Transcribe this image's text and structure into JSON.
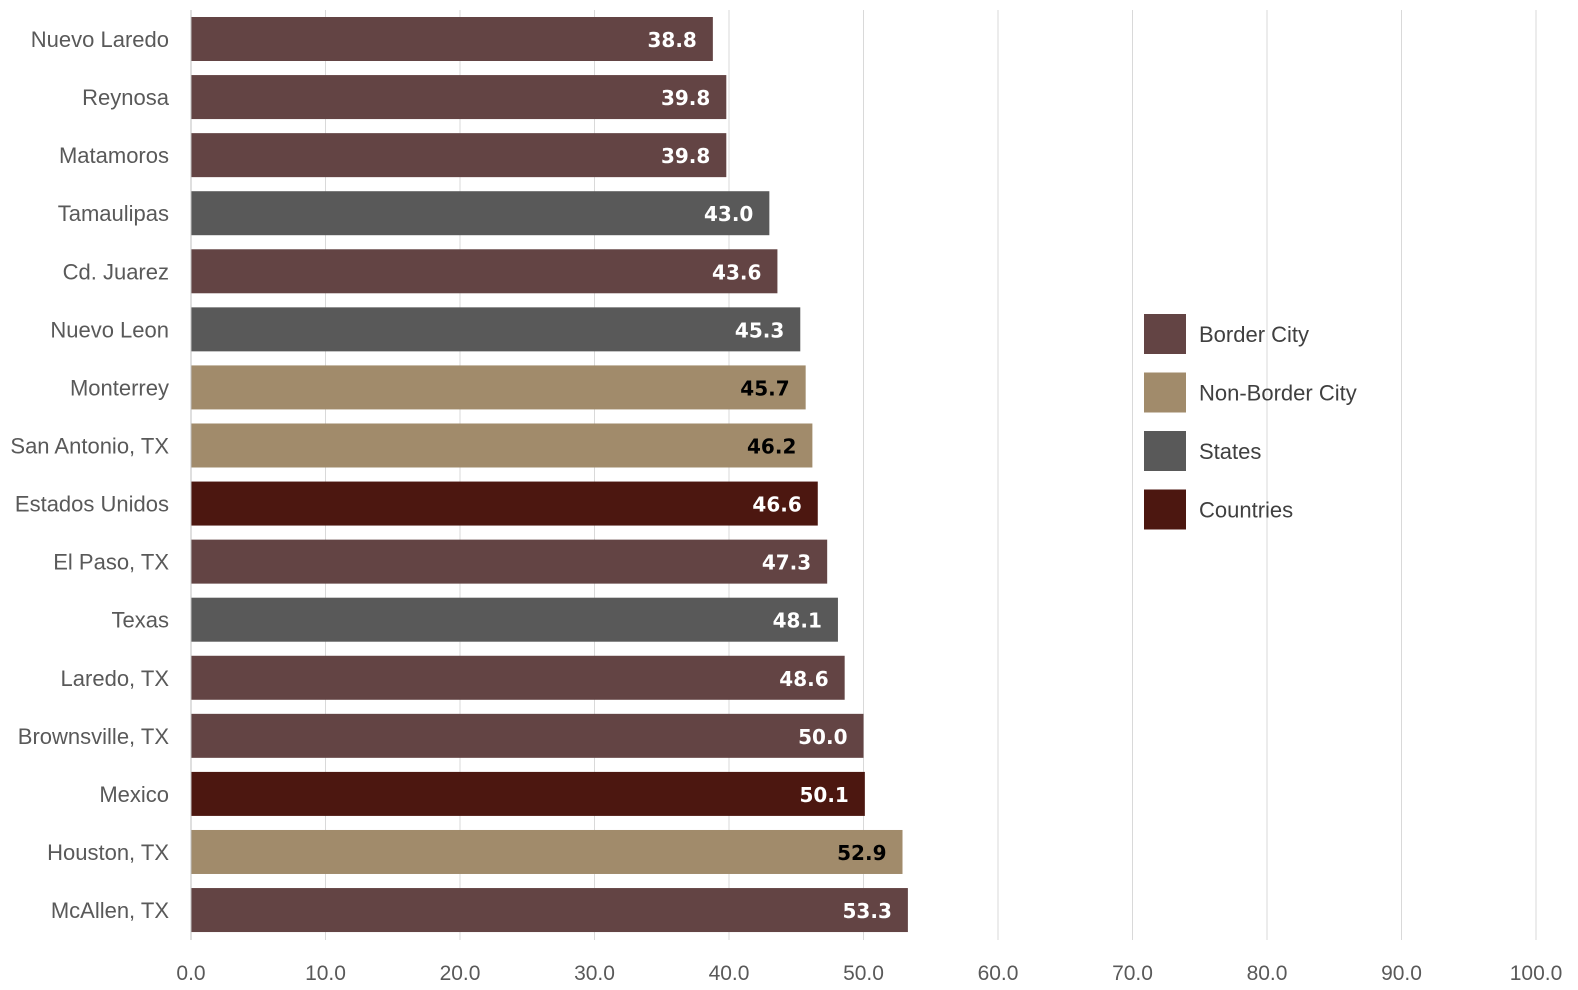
{
  "chart_data": {
    "type": "bar",
    "orientation": "horizontal",
    "title": "",
    "xlabel": "",
    "ylabel": "",
    "xlim": [
      0,
      100
    ],
    "x_ticks": [
      "0.0",
      "10.0",
      "20.0",
      "30.0",
      "40.0",
      "50.0",
      "60.0",
      "70.0",
      "80.0",
      "90.0",
      "100.0"
    ],
    "grid": "vertical",
    "legend_position": "right",
    "groups": [
      {
        "name": "Border City",
        "color": "#634444",
        "label_color": "#ffffff"
      },
      {
        "name": "Non-Border City",
        "color": "#A18B6B",
        "label_color": "#000000"
      },
      {
        "name": "States",
        "color": "#595959",
        "label_color": "#ffffff"
      },
      {
        "name": "Countries",
        "color": "#4C1710",
        "label_color": "#ffffff"
      }
    ],
    "categories": [
      "Nuevo Laredo",
      "Reynosa",
      "Matamoros",
      "Tamaulipas",
      "Cd. Juarez",
      "Nuevo Leon",
      "Monterrey",
      "San Antonio, TX",
      "Estados Unidos",
      "El Paso, TX",
      "Texas",
      "Laredo, TX",
      "Brownsville, TX",
      "Mexico",
      "Houston, TX",
      "McAllen, TX"
    ],
    "values": [
      38.8,
      39.8,
      39.8,
      43.0,
      43.6,
      45.3,
      45.7,
      46.2,
      46.6,
      47.3,
      48.1,
      48.6,
      50.0,
      50.1,
      52.9,
      53.3
    ],
    "value_labels": [
      "38.8",
      "39.8",
      "39.8",
      "43.0",
      "43.6",
      "45.3",
      "45.7",
      "46.2",
      "46.6",
      "47.3",
      "48.1",
      "48.6",
      "50.0",
      "50.1",
      "52.9",
      "53.3"
    ],
    "bar_group": [
      "Border City",
      "Border City",
      "Border City",
      "States",
      "Border City",
      "States",
      "Non-Border City",
      "Non-Border City",
      "Countries",
      "Border City",
      "States",
      "Border City",
      "Border City",
      "Countries",
      "Non-Border City",
      "Border City"
    ]
  }
}
